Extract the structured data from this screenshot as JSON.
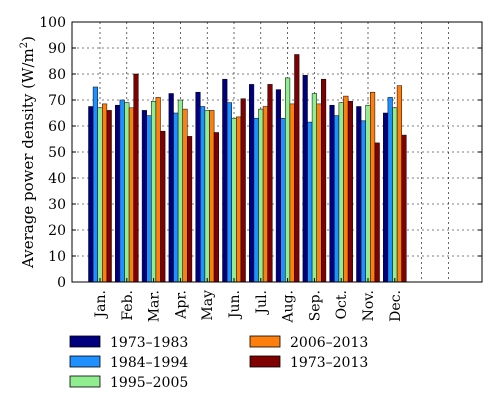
{
  "chart_data": {
    "type": "bar",
    "title": "",
    "xlabel": "",
    "ylabel": "Average power density (W/m²)",
    "ylabel_main": "Average power density (W/m",
    "ylabel_sup": "2",
    "ylabel_close": ")",
    "ylim": [
      0,
      100
    ],
    "yticks": [
      0,
      10,
      20,
      30,
      40,
      50,
      60,
      70,
      80,
      90,
      100
    ],
    "grid": true,
    "legend_position": "bottom",
    "categories": [
      "Jan.",
      "Feb.",
      "Mar.",
      "Apr.",
      "May",
      "Jun.",
      "Jul.",
      "Aug.",
      "Sep.",
      "Oct.",
      "Nov.",
      "Dec."
    ],
    "series": [
      {
        "name": "1973–1983",
        "color": "#00007f",
        "values": [
          67.5,
          68,
          66,
          72.5,
          73,
          78,
          76,
          74,
          79.5,
          68,
          67.5,
          65
        ]
      },
      {
        "name": "1984–1994",
        "color": "#1e90ff",
        "values": [
          75,
          70,
          64,
          65,
          67.5,
          69,
          63,
          63,
          61.5,
          64,
          62,
          71
        ]
      },
      {
        "name": "1995–2005",
        "color": "#90ee90",
        "values": [
          67,
          69,
          69.5,
          70,
          66,
          63,
          66.5,
          78.5,
          72.5,
          69,
          68,
          67
        ]
      },
      {
        "name": "2006–2013",
        "color": "#ff7f0e",
        "values": [
          68.5,
          67,
          71,
          66.5,
          66,
          63.5,
          67.5,
          68.5,
          68.5,
          71.5,
          73,
          75.5
        ]
      },
      {
        "name": "1973–2013",
        "color": "#7f0000",
        "values": [
          66,
          80,
          58,
          56,
          57.5,
          70.5,
          76,
          87.5,
          78,
          69.5,
          53.5,
          56.5
        ]
      }
    ]
  }
}
